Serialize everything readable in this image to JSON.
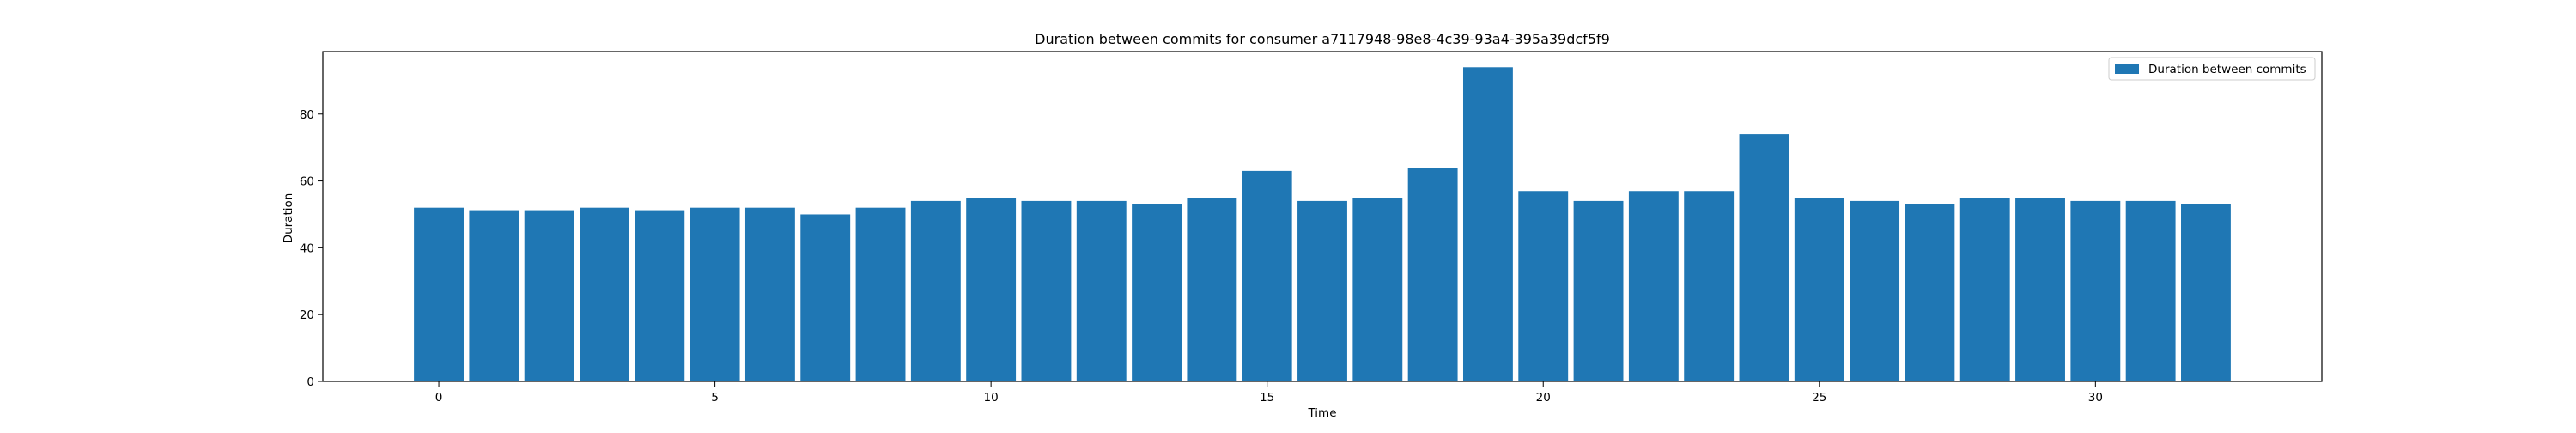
{
  "chart_data": {
    "type": "bar",
    "title": "Duration between commits for consumer a7117948-98e8-4c39-93a4-395a39dcf5f9",
    "xlabel": "Time",
    "ylabel": "Duration",
    "x": [
      0,
      1,
      2,
      3,
      4,
      5,
      6,
      7,
      8,
      9,
      10,
      11,
      12,
      13,
      14,
      15,
      16,
      17,
      18,
      19,
      20,
      21,
      22,
      23,
      24,
      25,
      26,
      27,
      28,
      29,
      30,
      31,
      32
    ],
    "values": [
      52,
      51,
      51,
      52,
      51,
      52,
      52,
      50,
      52,
      54,
      55,
      54,
      54,
      53,
      55,
      63,
      54,
      55,
      64,
      94,
      57,
      54,
      57,
      57,
      74,
      55,
      54,
      53,
      55,
      55,
      54,
      54,
      53
    ],
    "xlim": [
      -2.1,
      34.1
    ],
    "ylim": [
      0,
      98.7
    ],
    "xticks": [
      0,
      5,
      10,
      15,
      20,
      25,
      30
    ],
    "yticks": [
      0,
      20,
      40,
      60,
      80
    ],
    "grid": false,
    "legend": {
      "placement": "top-right",
      "entries": [
        {
          "label": "Duration between commits",
          "color": "#1f77b4"
        }
      ]
    },
    "bar_color": "#1f77b4"
  }
}
